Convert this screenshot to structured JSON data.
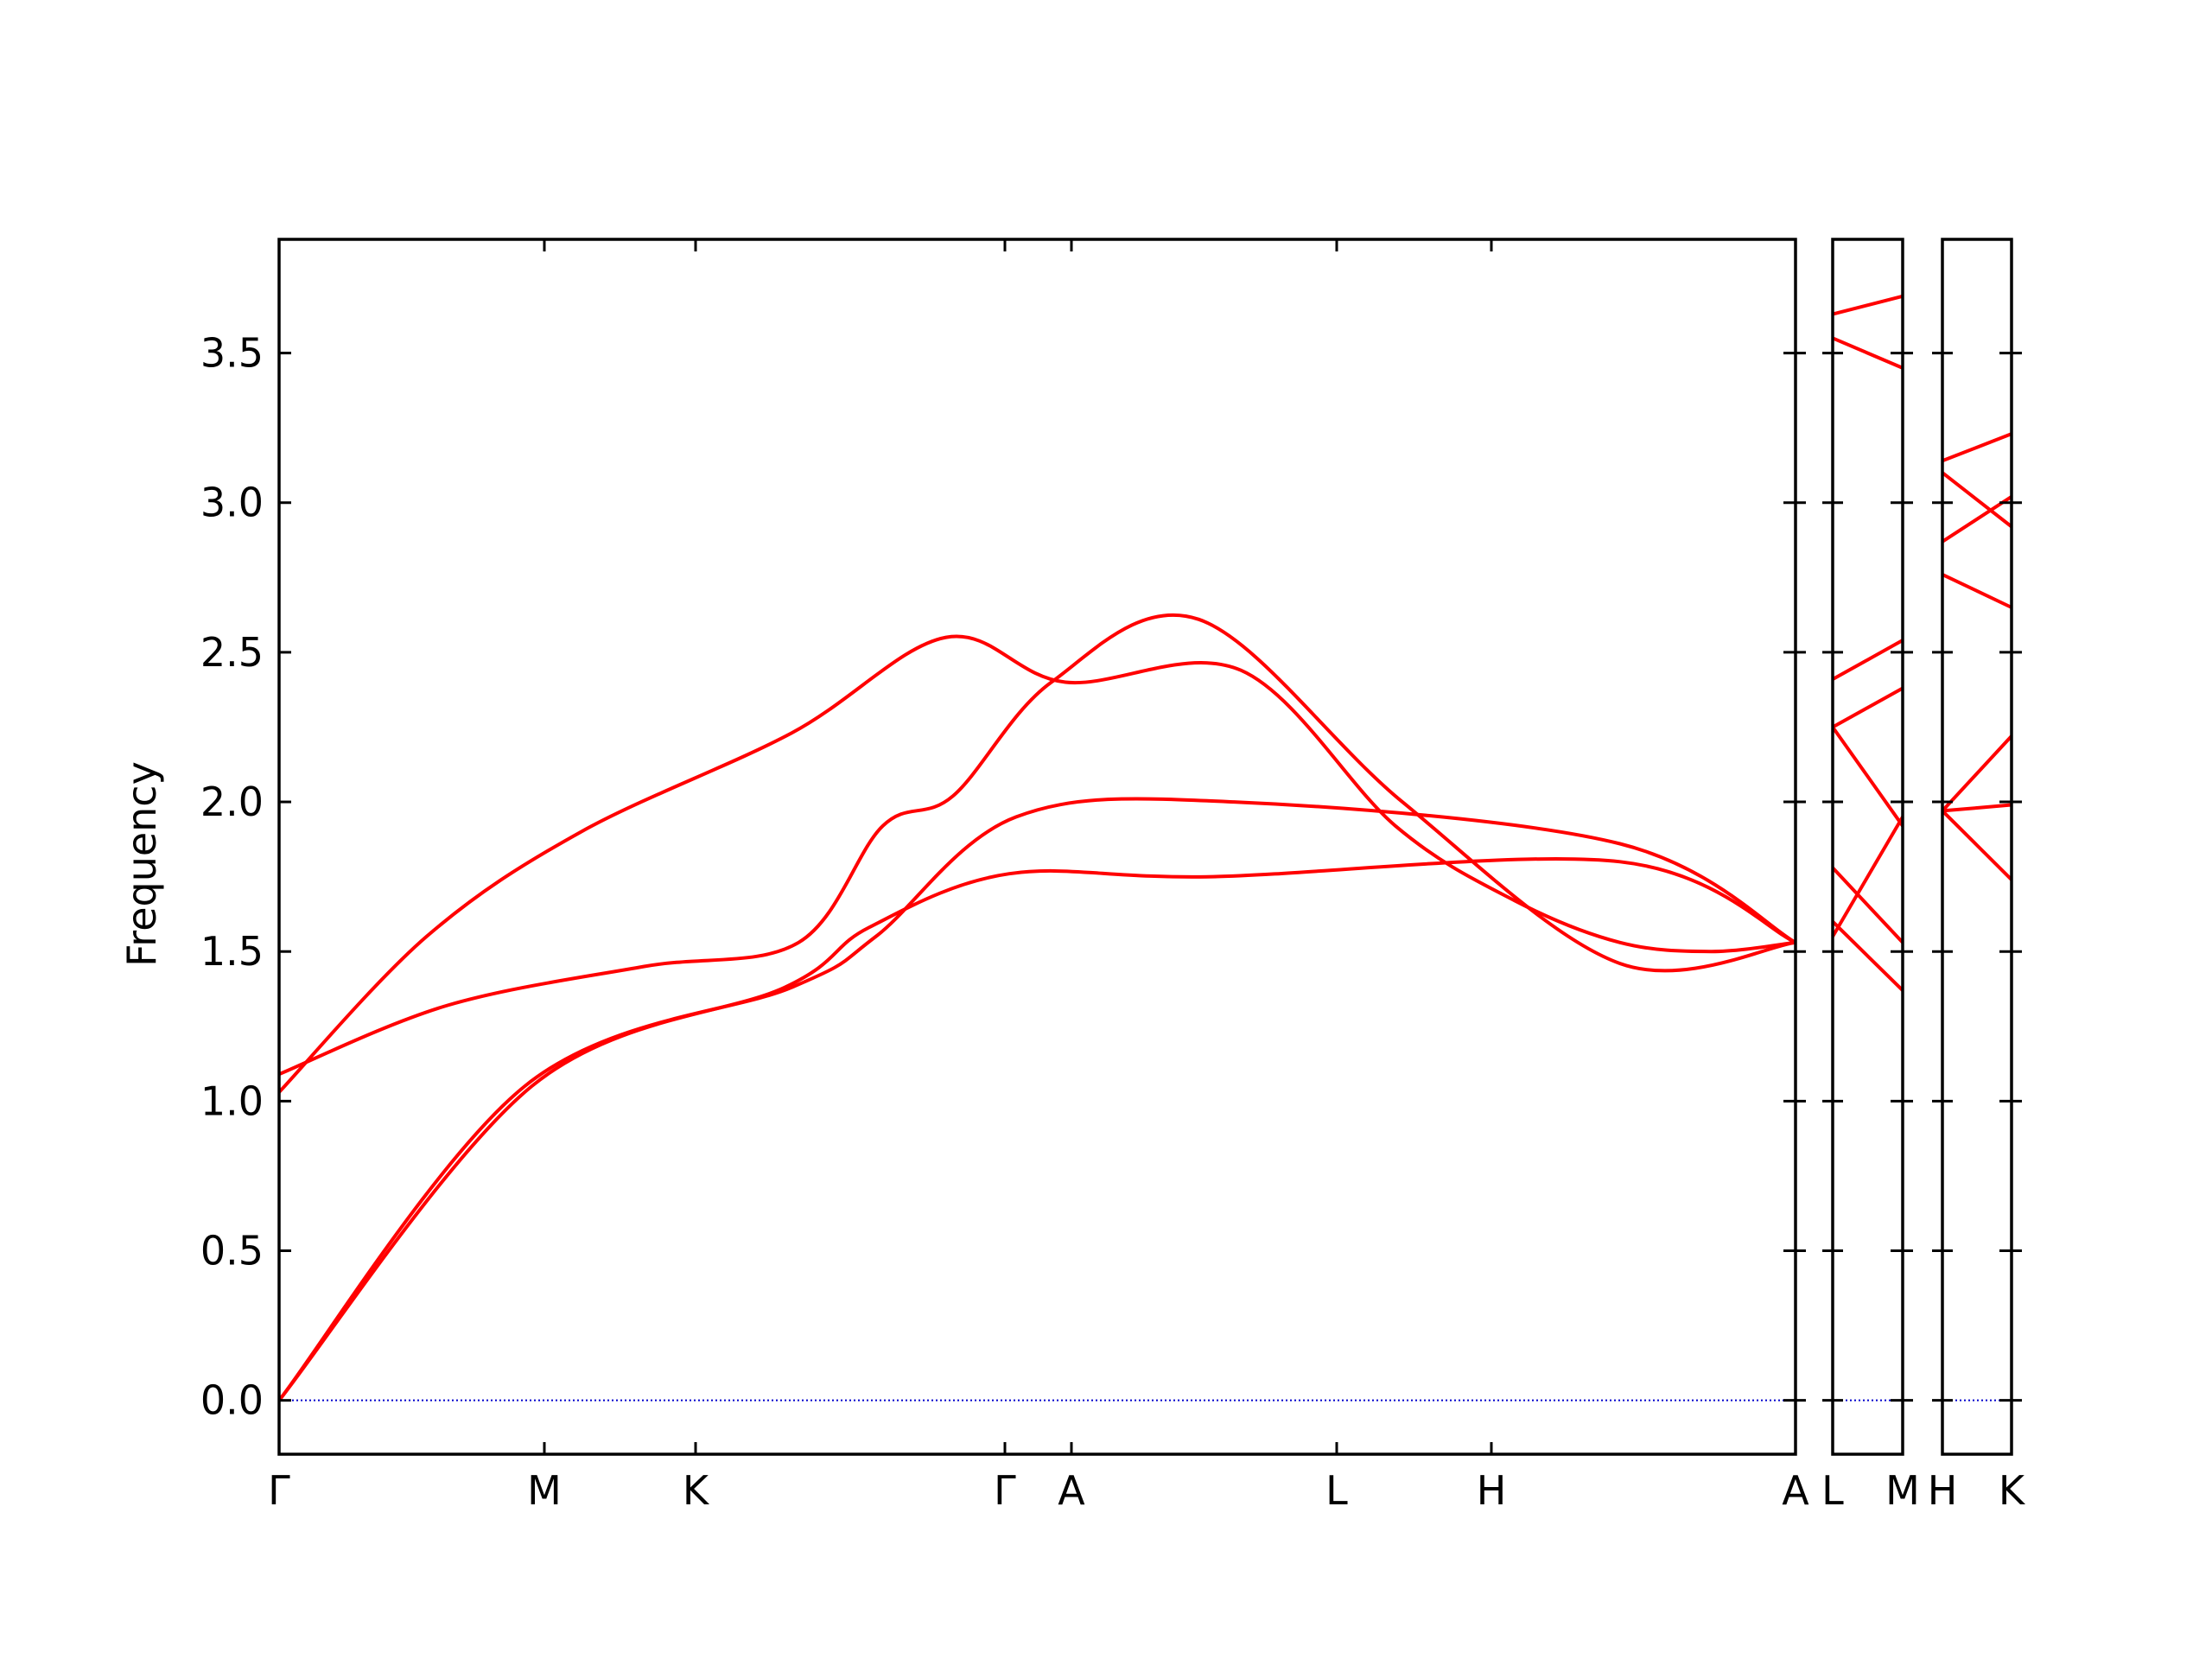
{
  "chart_data": {
    "type": "line",
    "title": "",
    "xlabel": "",
    "ylabel": "Frequency",
    "ylim": [
      -0.18,
      3.88
    ],
    "yticks": [
      0.0,
      0.5,
      1.0,
      1.5,
      2.0,
      2.5,
      3.0,
      3.5
    ],
    "ytick_labels": [
      "0.0",
      "0.5",
      "1.0",
      "1.5",
      "2.0",
      "2.5",
      "3.0",
      "3.5"
    ],
    "grid": false,
    "band_color": "#ff0000",
    "zero_line_color": "#0000cc",
    "panels": [
      {
        "segments": [
          "Γ-M",
          "M-K",
          "K-Γ",
          "Γ-A",
          "A-L",
          "L-H",
          "H-A"
        ],
        "tick_labels": [
          "Γ",
          "M",
          "K",
          "Γ",
          "A",
          "L",
          "H",
          "A"
        ],
        "bands": [
          {
            "x": [
              0,
              3.6,
              7.2,
              8.4,
              10.4,
              13.3,
              19.1,
              21.6
            ],
            "y": [
              0,
              1.05,
              1.38,
              1.58,
              1.76,
              1.75,
              1.8,
              1.53
            ]
          },
          {
            "x": [
              0,
              3.5,
              7.3,
              8.5,
              10.5,
              13.6,
              19.1,
              21.6
            ],
            "y": [
              0,
              1.05,
              1.38,
              1.55,
              1.95,
              2.0,
              1.86,
              1.53
            ]
          },
          {
            "x": [
              0,
              2.4,
              5.2,
              7.4,
              8.6,
              9.6,
              11.0,
              13.1,
              16.0,
              19.1,
              21.6
            ],
            "y": [
              1.09,
              1.32,
              1.45,
              1.53,
              1.92,
              2.02,
              2.4,
              2.61,
              2.0,
              1.46,
              1.53
            ]
          },
          {
            "x": [
              0,
              2.1,
              4.3,
              7.3,
              9.5,
              11.2,
              13.7,
              15.9,
              17.6,
              19.1,
              20.4,
              21.6
            ],
            "y": [
              1.03,
              1.55,
              1.9,
              2.23,
              2.55,
              2.4,
              2.44,
              1.92,
              1.67,
              1.53,
              1.5,
              1.53
            ]
          }
        ]
      },
      {
        "segments": [
          "L-M"
        ],
        "tick_labels": [
          "L",
          "M"
        ],
        "bands": [
          {
            "x": [
              0,
              1
            ],
            "y": [
              1.55,
              1.95
            ]
          },
          {
            "x": [
              0,
              1
            ],
            "y": [
              1.6,
              1.37
            ]
          },
          {
            "x": [
              0,
              1
            ],
            "y": [
              1.78,
              1.53
            ]
          },
          {
            "x": [
              0,
              1
            ],
            "y": [
              2.25,
              1.92
            ]
          },
          {
            "x": [
              0,
              1
            ],
            "y": [
              2.25,
              2.38
            ]
          },
          {
            "x": [
              0,
              1
            ],
            "y": [
              2.41,
              2.54
            ]
          },
          {
            "x": [
              0,
              1
            ],
            "y": [
              3.55,
              3.45
            ]
          },
          {
            "x": [
              0,
              1
            ],
            "y": [
              3.63,
              3.69
            ]
          }
        ]
      },
      {
        "segments": [
          "H-K"
        ],
        "tick_labels": [
          "H",
          "K"
        ],
        "bands": [
          {
            "x": [
              0,
              1
            ],
            "y": [
              1.97,
              1.74
            ]
          },
          {
            "x": [
              0,
              1
            ],
            "y": [
              1.97,
              1.99
            ]
          },
          {
            "x": [
              0,
              1
            ],
            "y": [
              1.97,
              2.22
            ]
          },
          {
            "x": [
              0,
              1
            ],
            "y": [
              2.76,
              2.65
            ]
          },
          {
            "x": [
              0,
              1
            ],
            "y": [
              2.87,
              3.02
            ]
          },
          {
            "x": [
              0,
              1
            ],
            "y": [
              3.1,
              2.92
            ]
          },
          {
            "x": [
              0,
              1
            ],
            "y": [
              3.14,
              3.23
            ]
          }
        ]
      }
    ]
  }
}
